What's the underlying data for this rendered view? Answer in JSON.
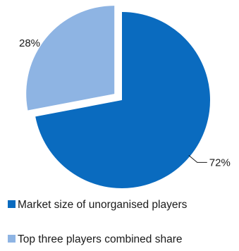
{
  "chart_data": {
    "type": "pie",
    "categories": [
      "Market size of unorganised players",
      "Top three players combined share"
    ],
    "values": [
      72,
      28
    ],
    "data_labels": [
      "72%",
      "28%"
    ],
    "colors": [
      "#0a6bbf",
      "#8eb4e3"
    ],
    "exploded": "Top three players combined share",
    "legend_position": "bottom"
  }
}
